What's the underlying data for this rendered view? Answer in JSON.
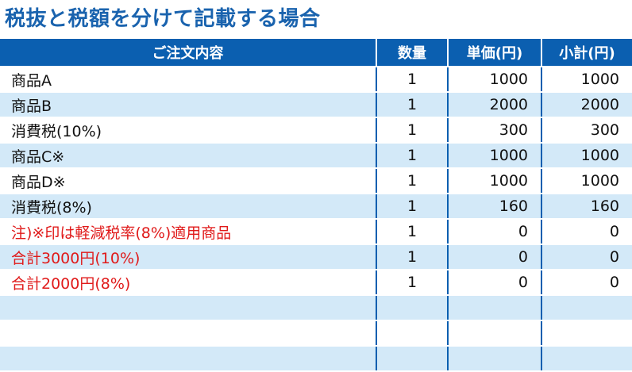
{
  "title": "税抜と税額を分けて記載する場合",
  "headers": {
    "item": "ご注文内容",
    "qty": "数量",
    "unit_price": "単価(円)",
    "subtotal": "小計(円)"
  },
  "colors": {
    "title": "#1a63ae",
    "header_bg": "#0b5fb0",
    "row_alt_bg": "#d3e9f8",
    "note_text": "#e01a1a"
  },
  "rows": [
    {
      "item": "商品A",
      "qty": "1",
      "unit_price": "1000",
      "subtotal": "1000"
    },
    {
      "item": "商品B",
      "qty": "1",
      "unit_price": "2000",
      "subtotal": "2000"
    },
    {
      "item": "消費税(10%)",
      "qty": "1",
      "unit_price": "300",
      "subtotal": "300"
    },
    {
      "item": "商品C※",
      "qty": "1",
      "unit_price": "1000",
      "subtotal": "1000"
    },
    {
      "item": "商品D※",
      "qty": "1",
      "unit_price": "1000",
      "subtotal": "1000"
    },
    {
      "item": "消費税(8%)",
      "qty": "1",
      "unit_price": "160",
      "subtotal": "160"
    },
    {
      "item": "注)※印は軽減税率(8%)適用商品",
      "qty": "1",
      "unit_price": "0",
      "subtotal": "0",
      "highlight": true
    },
    {
      "item": "合計3000円(10%)",
      "qty": "1",
      "unit_price": "0",
      "subtotal": "0",
      "highlight": true
    },
    {
      "item": "合計2000円(8%)",
      "qty": "1",
      "unit_price": "0",
      "subtotal": "0",
      "highlight": true
    },
    {
      "item": "",
      "qty": "",
      "unit_price": "",
      "subtotal": ""
    },
    {
      "item": "",
      "qty": "",
      "unit_price": "",
      "subtotal": ""
    },
    {
      "item": "",
      "qty": "",
      "unit_price": "",
      "subtotal": ""
    }
  ]
}
